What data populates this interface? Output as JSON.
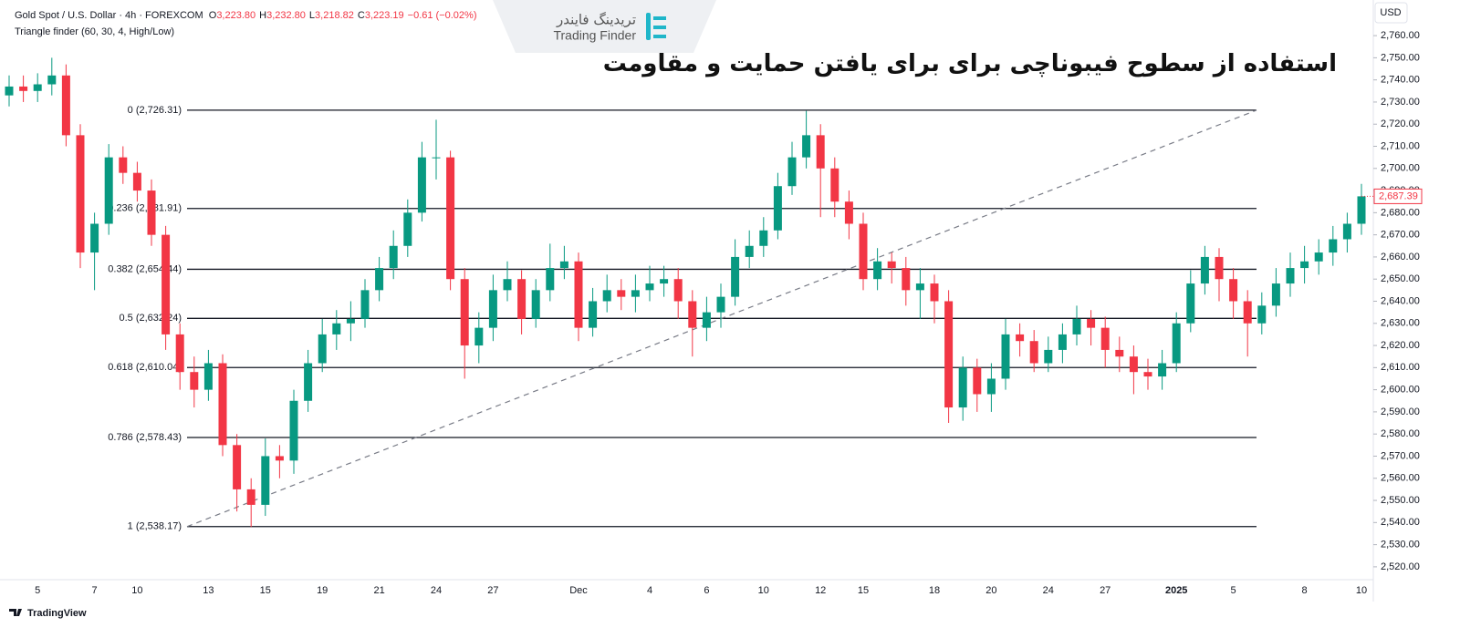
{
  "chart_data": {
    "type": "candlestick",
    "title": "استفاده از سطوح فیبوناچی برای برای یافتن حمایت و مقاومت",
    "symbol": "Gold Spot / U.S. Dollar · 4h · FOREXCOM",
    "ohlc_header": [
      {
        "key": "O",
        "text": "3,223.80"
      },
      {
        "key": "H",
        "text": "3,232.80"
      },
      {
        "key": "L",
        "text": "3,218.82"
      },
      {
        "key": "C",
        "text": "3,223.19"
      }
    ],
    "change": "−0.61 (−0.02%)",
    "indicator": "Triangle finder (60, 30, 4, High/Low)",
    "currency": "USD",
    "logo_fa": "تریدینگ فایندر",
    "logo_en": "Trading Finder",
    "footer": "TradingView",
    "up_color": "#089981",
    "down_color": "#f23645",
    "last_price": 2687.39,
    "last_price_label": "2,687.39",
    "categories": [
      null,
      null,
      "5",
      null,
      null,
      null,
      "7",
      null,
      null,
      "10",
      null,
      null,
      null,
      null,
      "13",
      null,
      null,
      null,
      "15",
      null,
      null,
      null,
      "19",
      null,
      null,
      null,
      "21",
      null,
      null,
      null,
      "24",
      null,
      null,
      null,
      "27",
      null,
      null,
      null,
      null,
      null,
      "Dec",
      null,
      null,
      null,
      null,
      "4",
      null,
      null,
      null,
      "6",
      null,
      null,
      null,
      "10",
      null,
      null,
      null,
      "12",
      null,
      null,
      "15",
      null,
      null,
      null,
      null,
      "18",
      null,
      null,
      null,
      "20",
      null,
      null,
      null,
      "24",
      null,
      null,
      null,
      "27",
      null,
      null,
      null,
      null,
      "2025",
      null,
      null,
      null,
      "5",
      null,
      null,
      null,
      null,
      "8",
      null,
      null,
      null,
      "10"
    ],
    "open": [
      2733,
      2737,
      2735,
      2738,
      2742,
      2715,
      2662,
      2675,
      2705,
      2698,
      2690,
      2670,
      2625,
      2608,
      2600,
      2612,
      2575,
      2555,
      2548,
      2570,
      2568,
      2595,
      2612,
      2625,
      2630,
      2632,
      2645,
      2655,
      2665,
      2680,
      2705,
      2705,
      2650,
      2620,
      2628,
      2645,
      2650,
      2632,
      2645,
      2655,
      2658,
      2628,
      2640,
      2645,
      2642,
      2645,
      2648,
      2650,
      2640,
      2628,
      2635,
      2642,
      2660,
      2665,
      2672,
      2692,
      2705,
      2715,
      2700,
      2685,
      2675,
      2650,
      2658,
      2655,
      2645,
      2648,
      2640,
      2592,
      2610,
      2598,
      2605,
      2625,
      2622,
      2612,
      2618,
      2625,
      2632,
      2628,
      2618,
      2615,
      2608,
      2606,
      2612,
      2630,
      2648,
      2660,
      2650,
      2640,
      2630,
      2638,
      2648,
      2655,
      2658,
      2662,
      2668,
      2675
    ],
    "high": [
      2742,
      2742,
      2743,
      2750,
      2747,
      2720,
      2680,
      2711,
      2710,
      2703,
      2695,
      2674,
      2630,
      2615,
      2618,
      2616,
      2580,
      2560,
      2578,
      2575,
      2600,
      2618,
      2632,
      2636,
      2640,
      2650,
      2660,
      2672,
      2686,
      2712,
      2722,
      2708,
      2655,
      2635,
      2652,
      2658,
      2654,
      2650,
      2666,
      2665,
      2662,
      2646,
      2652,
      2650,
      2652,
      2656,
      2656,
      2655,
      2645,
      2642,
      2648,
      2668,
      2672,
      2678,
      2698,
      2712,
      2726,
      2720,
      2705,
      2690,
      2680,
      2664,
      2662,
      2660,
      2655,
      2652,
      2645,
      2615,
      2614,
      2612,
      2632,
      2630,
      2627,
      2624,
      2630,
      2638,
      2636,
      2633,
      2624,
      2620,
      2614,
      2618,
      2635,
      2654,
      2665,
      2664,
      2655,
      2645,
      2644,
      2655,
      2662,
      2665,
      2668,
      2674,
      2680,
      2693
    ],
    "low": [
      2728,
      2730,
      2730,
      2733,
      2710,
      2655,
      2645,
      2670,
      2693,
      2685,
      2665,
      2618,
      2600,
      2592,
      2595,
      2570,
      2545,
      2538,
      2543,
      2560,
      2562,
      2590,
      2608,
      2618,
      2622,
      2628,
      2640,
      2650,
      2660,
      2676,
      2695,
      2645,
      2605,
      2612,
      2622,
      2640,
      2625,
      2628,
      2640,
      2650,
      2622,
      2624,
      2635,
      2636,
      2635,
      2640,
      2642,
      2632,
      2615,
      2622,
      2628,
      2638,
      2655,
      2660,
      2668,
      2688,
      2700,
      2678,
      2678,
      2668,
      2645,
      2645,
      2648,
      2638,
      2632,
      2630,
      2585,
      2586,
      2590,
      2590,
      2600,
      2615,
      2608,
      2608,
      2612,
      2620,
      2620,
      2610,
      2608,
      2598,
      2600,
      2600,
      2608,
      2626,
      2643,
      2640,
      2632,
      2615,
      2625,
      2633,
      2642,
      2648,
      2652,
      2656,
      2662,
      2670
    ],
    "close": [
      2737,
      2735,
      2738,
      2742,
      2715,
      2662,
      2675,
      2705,
      2698,
      2690,
      2670,
      2625,
      2608,
      2600,
      2612,
      2575,
      2555,
      2548,
      2570,
      2568,
      2595,
      2612,
      2625,
      2630,
      2632,
      2645,
      2655,
      2665,
      2680,
      2705,
      2705,
      2650,
      2620,
      2628,
      2645,
      2650,
      2632,
      2645,
      2655,
      2658,
      2628,
      2640,
      2645,
      2642,
      2645,
      2648,
      2650,
      2640,
      2628,
      2635,
      2642,
      2660,
      2665,
      2672,
      2692,
      2705,
      2715,
      2700,
      2685,
      2675,
      2650,
      2658,
      2655,
      2645,
      2648,
      2640,
      2592,
      2610,
      2598,
      2605,
      2625,
      2622,
      2612,
      2618,
      2625,
      2632,
      2628,
      2618,
      2615,
      2608,
      2606,
      2612,
      2630,
      2648,
      2660,
      2650,
      2640,
      2630,
      2638,
      2648,
      2655,
      2658,
      2662,
      2668,
      2675,
      2687.39
    ],
    "fib_levels": [
      {
        "value": 2726.31,
        "label": "0 (2,726.31)"
      },
      {
        "value": 2681.91,
        "label": "0.236 (2,681.91)"
      },
      {
        "value": 2654.44,
        "label": "0.382 (2,654.44)"
      },
      {
        "value": 2632.24,
        "label": "0.5 (2,632.24)"
      },
      {
        "value": 2610.04,
        "label": "0.618 (2,610.04)"
      },
      {
        "value": 2578.43,
        "label": "0.786 (2,578.43)"
      },
      {
        "value": 2538.17,
        "label": "1 (2,538.17)"
      }
    ],
    "ylim": [
      2514.6,
      2776.1
    ],
    "yticks": [
      {
        "value": 2520,
        "label": "2,520.00"
      },
      {
        "value": 2530,
        "label": "2,530.00"
      },
      {
        "value": 2540,
        "label": "2,540.00"
      },
      {
        "value": 2550,
        "label": "2,550.00"
      },
      {
        "value": 2560,
        "label": "2,560.00"
      },
      {
        "value": 2570,
        "label": "2,570.00"
      },
      {
        "value": 2580,
        "label": "2,580.00"
      },
      {
        "value": 2590,
        "label": "2,590.00"
      },
      {
        "value": 2600,
        "label": "2,600.00"
      },
      {
        "value": 2610,
        "label": "2,610.00"
      },
      {
        "value": 2620,
        "label": "2,620.00"
      },
      {
        "value": 2630,
        "label": "2,630.00"
      },
      {
        "value": 2640,
        "label": "2,640.00"
      },
      {
        "value": 2650,
        "label": "2,650.00"
      },
      {
        "value": 2660,
        "label": "2,660.00"
      },
      {
        "value": 2670,
        "label": "2,670.00"
      },
      {
        "value": 2680,
        "label": "2,680.00"
      },
      {
        "value": 2690,
        "label": "2,690.00"
      },
      {
        "value": 2700,
        "label": "2,700.00"
      },
      {
        "value": 2710,
        "label": "2,710.00"
      },
      {
        "value": 2720,
        "label": "2,720.00"
      },
      {
        "value": 2730,
        "label": "2,730.00"
      },
      {
        "value": 2740,
        "label": "2,740.00"
      },
      {
        "value": 2750,
        "label": "2,750.00"
      },
      {
        "value": 2760,
        "label": "2,760.00"
      }
    ]
  }
}
